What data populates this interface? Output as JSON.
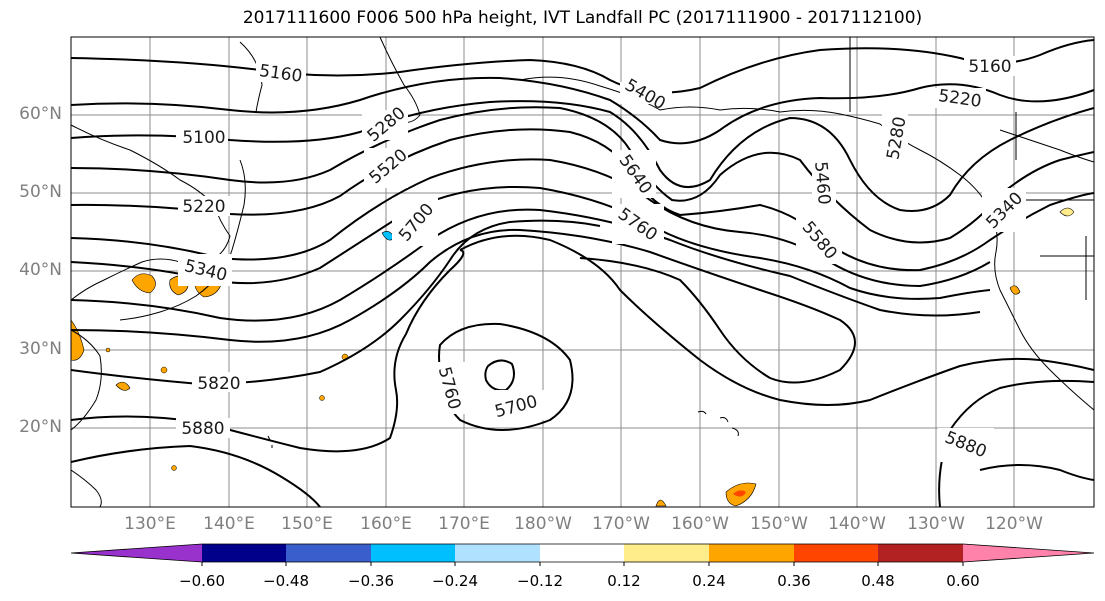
{
  "title": "2017111600 F006 500 hPa height, IVT Landfall PC (2017111900 - 2017112100)",
  "lat_labels": [
    "60°N",
    "50°N",
    "40°N",
    "30°N",
    "20°N"
  ],
  "lon_labels": [
    "130°E",
    "140°E",
    "150°E",
    "160°E",
    "170°E",
    "180°W",
    "170°W",
    "160°W",
    "150°W",
    "140°W",
    "130°W",
    "120°W"
  ],
  "contour_labels": [
    "5160",
    "5400",
    "5100",
    "5280",
    "5640",
    "5160",
    "5220",
    "5520",
    "5460",
    "5280",
    "5220",
    "5700",
    "5760",
    "5340",
    "5580",
    "5340",
    "5820",
    "5760",
    "5700",
    "5880",
    "5880"
  ],
  "colorbar": {
    "ticks": [
      "−0.60",
      "−0.48",
      "−0.36",
      "−0.24",
      "−0.12",
      "0.12",
      "0.24",
      "0.36",
      "0.48",
      "0.60"
    ],
    "colors": [
      "#9932cc",
      "#00008b",
      "#3a5fcd",
      "#00bfff",
      "#b0e2ff",
      "#ffffff",
      "#ffec8b",
      "#ffa500",
      "#ff4500",
      "#b22222",
      "#ff82ab"
    ]
  }
}
